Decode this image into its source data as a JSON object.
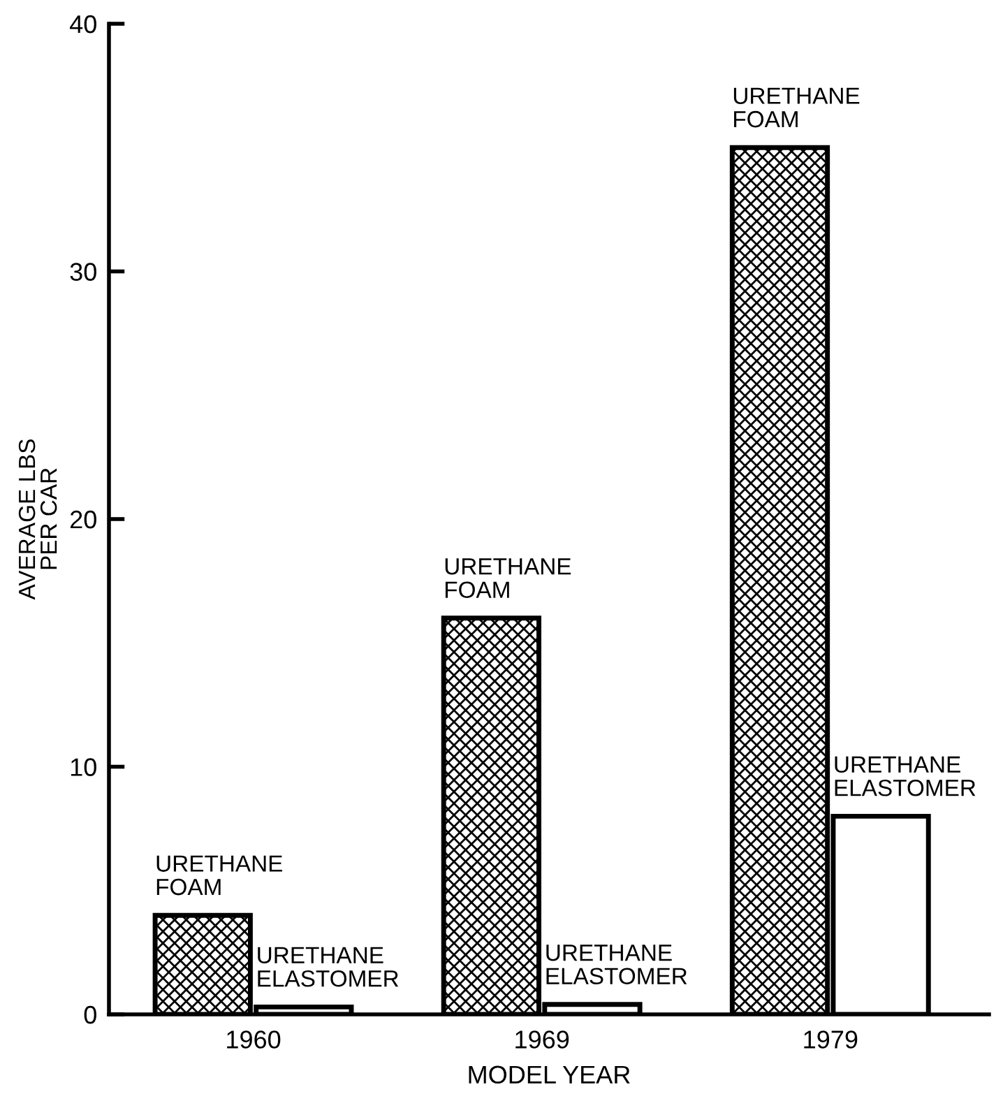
{
  "chart_data": {
    "type": "bar",
    "xlabel": "MODEL YEAR",
    "ylabel": "AVERAGE LBS\nPER CAR",
    "categories": [
      "1960",
      "1969",
      "1979"
    ],
    "series": [
      {
        "name": "URETHANE\nFOAM",
        "color": "#000000",
        "values": [
          4,
          16,
          35
        ]
      },
      {
        "name": "URETHANE\nELASTOMER",
        "color": "#ffffff",
        "values": [
          0.3,
          0.4,
          8
        ]
      }
    ],
    "ylim": [
      0,
      40
    ],
    "yticks": [
      0,
      10,
      20,
      30,
      40
    ],
    "grid": false,
    "legend": false
  }
}
